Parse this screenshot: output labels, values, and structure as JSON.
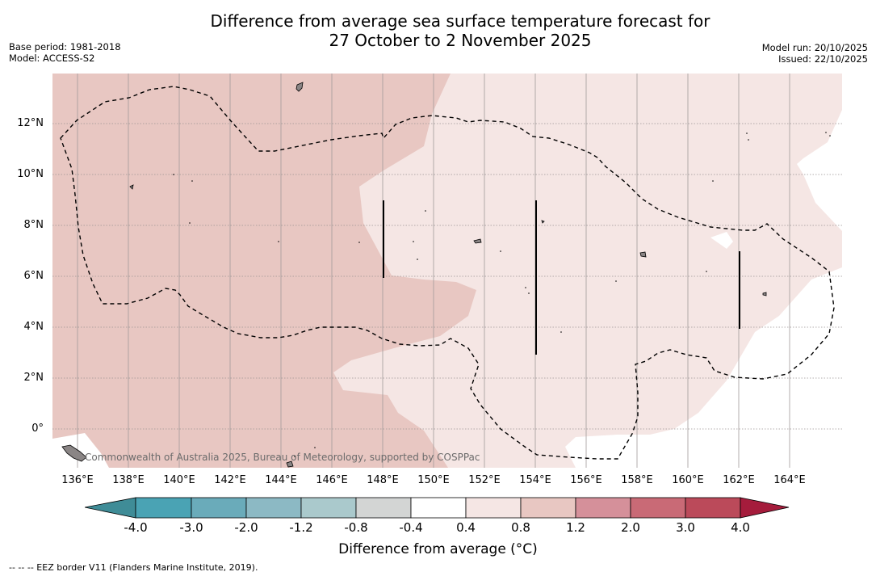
{
  "title_line1": "Difference from average sea surface temperature forecast for",
  "title_line2": "27 October to 2 November 2025",
  "base_period": "Base period: 1981-2018",
  "model": "Model: ACCESS-S2",
  "model_run": "Model run: 20/10/2025",
  "issued": "Issued: 22/10/2025",
  "lat_labels": [
    "12°N",
    "10°N",
    "8°N",
    "6°N",
    "4°N",
    "2°N",
    "0°"
  ],
  "lon_labels": [
    "136°E",
    "138°E",
    "140°E",
    "142°E",
    "144°E",
    "146°E",
    "148°E",
    "150°E",
    "152°E",
    "154°E",
    "156°E",
    "158°E",
    "160°E",
    "162°E",
    "164°E"
  ],
  "copyright": "Commonwealth of Australia 2025, Bureau of Meteorology, supported by COSPPac",
  "colorbar_ticks": [
    "-4.0",
    "-3.0",
    "-2.0",
    "-1.2",
    "-0.8",
    "-0.4",
    "0.4",
    "0.8",
    "1.2",
    "2.0",
    "3.0",
    "4.0"
  ],
  "colorbar_label": "Difference from average (°C)",
  "colorbar_colors": [
    "#3f8c97",
    "#4aa3b4",
    "#6aabba",
    "#8cb9c4",
    "#aac9cc",
    "#d3d5d4",
    "#ffffff",
    "#f5e6e4",
    "#e8c7c2",
    "#d5909a",
    "#c96a76",
    "#bb4a5a",
    "#a51c3c"
  ],
  "eez_note": "--  --  -- EEZ border V11 (Flanders Marine Institute, 2019).",
  "colors": {
    "warm_1": "#e8c7c2",
    "warm_0": "#f5e6e4",
    "land": "#8a8585"
  }
}
